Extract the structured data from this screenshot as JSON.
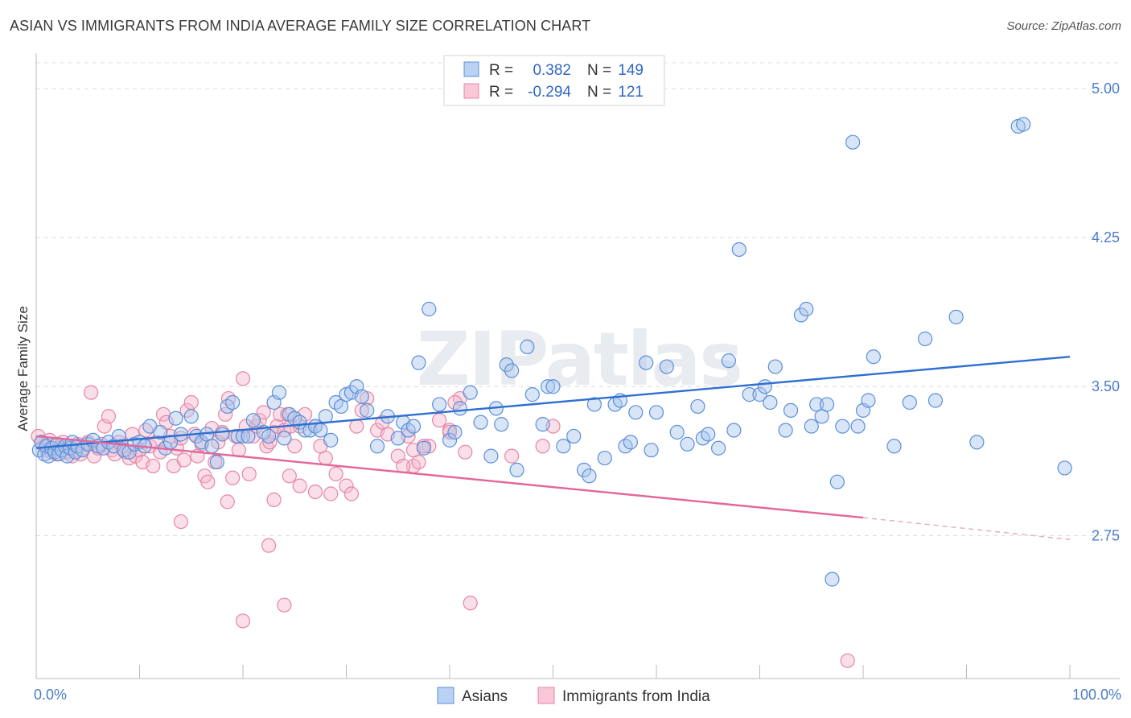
{
  "title": "ASIAN VS IMMIGRANTS FROM INDIA AVERAGE FAMILY SIZE CORRELATION CHART",
  "source": "Source: ZipAtlas.com",
  "watermark": "ZIPatlas",
  "legend": {
    "rows": [
      {
        "r_label": "R =",
        "r_value": "0.382",
        "n_label": "N =",
        "n_value": "149"
      },
      {
        "r_label": "R =",
        "r_value": "-0.294",
        "n_label": "N =",
        "n_value": "121"
      }
    ]
  },
  "colors": {
    "asian_fill": "#a9c6ee",
    "asian_stroke": "#5b8fd8",
    "asian_line": "#2f6fd0",
    "india_fill": "#f5b8cb",
    "india_stroke": "#e884a6",
    "india_line": "#e3679a",
    "grid": "#dcdcdc",
    "tick_label": "#4a7cc9"
  },
  "chart_data": {
    "type": "scatter",
    "title": "ASIAN VS IMMIGRANTS FROM INDIA AVERAGE FAMILY SIZE CORRELATION CHART",
    "xlabel": "",
    "ylabel": "Average Family Size",
    "xlim": [
      0,
      100
    ],
    "ylim": [
      2.03,
      5.13
    ],
    "x_tick_labels": [
      "0.0%",
      "100.0%"
    ],
    "y_ticks": [
      2.75,
      3.5,
      4.25,
      5.0
    ],
    "y_tick_labels": [
      "2.75",
      "3.50",
      "4.25",
      "5.00"
    ],
    "grid": true,
    "legend_position": "bottom",
    "series": [
      {
        "name": "Asians",
        "r": 0.382,
        "n": 149,
        "trend": {
          "x": [
            0,
            100
          ],
          "y": [
            3.19,
            3.65
          ]
        },
        "points": [
          [
            0.3,
            3.18
          ],
          [
            0.5,
            3.22
          ],
          [
            0.8,
            3.16
          ],
          [
            1.0,
            3.2
          ],
          [
            1.2,
            3.15
          ],
          [
            1.5,
            3.19
          ],
          [
            1.8,
            3.17
          ],
          [
            2.0,
            3.21
          ],
          [
            2.2,
            3.16
          ],
          [
            2.5,
            3.18
          ],
          [
            2.8,
            3.2
          ],
          [
            3.0,
            3.15
          ],
          [
            3.3,
            3.19
          ],
          [
            3.5,
            3.22
          ],
          [
            3.8,
            3.17
          ],
          [
            4.0,
            3.2
          ],
          [
            4.5,
            3.18
          ],
          [
            5.0,
            3.21
          ],
          [
            5.5,
            3.23
          ],
          [
            6.0,
            3.2
          ],
          [
            6.5,
            3.19
          ],
          [
            7.0,
            3.22
          ],
          [
            7.5,
            3.2
          ],
          [
            8.0,
            3.25
          ],
          [
            8.5,
            3.18
          ],
          [
            9.0,
            3.17
          ],
          [
            9.5,
            3.21
          ],
          [
            10.0,
            3.22
          ],
          [
            10.5,
            3.2
          ],
          [
            11.0,
            3.3
          ],
          [
            12.0,
            3.27
          ],
          [
            12.5,
            3.19
          ],
          [
            13.0,
            3.22
          ],
          [
            13.5,
            3.34
          ],
          [
            14.0,
            3.26
          ],
          [
            15.0,
            3.35
          ],
          [
            15.5,
            3.25
          ],
          [
            16.0,
            3.22
          ],
          [
            16.5,
            3.26
          ],
          [
            17.0,
            3.2
          ],
          [
            17.5,
            3.12
          ],
          [
            18.0,
            3.26
          ],
          [
            18.5,
            3.4
          ],
          [
            19.0,
            3.42
          ],
          [
            19.5,
            3.25
          ],
          [
            20.0,
            3.25
          ],
          [
            20.5,
            3.25
          ],
          [
            21.0,
            3.33
          ],
          [
            22.0,
            3.27
          ],
          [
            22.5,
            3.25
          ],
          [
            23.0,
            3.42
          ],
          [
            23.5,
            3.47
          ],
          [
            24.0,
            3.24
          ],
          [
            24.5,
            3.36
          ],
          [
            25.0,
            3.34
          ],
          [
            25.5,
            3.32
          ],
          [
            26.0,
            3.28
          ],
          [
            26.5,
            3.28
          ],
          [
            27.0,
            3.3
          ],
          [
            27.5,
            3.28
          ],
          [
            28.0,
            3.35
          ],
          [
            28.5,
            3.23
          ],
          [
            29.0,
            3.42
          ],
          [
            29.5,
            3.4
          ],
          [
            30.0,
            3.46
          ],
          [
            30.5,
            3.47
          ],
          [
            31.0,
            3.5
          ],
          [
            31.5,
            3.45
          ],
          [
            32.0,
            3.38
          ],
          [
            33.0,
            3.2
          ],
          [
            34.0,
            3.35
          ],
          [
            35.0,
            3.24
          ],
          [
            35.5,
            3.32
          ],
          [
            36.0,
            3.28
          ],
          [
            36.5,
            3.3
          ],
          [
            37.0,
            3.62
          ],
          [
            37.5,
            3.19
          ],
          [
            38.0,
            3.89
          ],
          [
            39.0,
            3.41
          ],
          [
            40.0,
            3.23
          ],
          [
            40.5,
            3.27
          ],
          [
            41.0,
            3.39
          ],
          [
            42.0,
            3.47
          ],
          [
            43.0,
            3.32
          ],
          [
            44.0,
            3.15
          ],
          [
            44.5,
            3.39
          ],
          [
            45.0,
            3.31
          ],
          [
            45.5,
            3.61
          ],
          [
            46.0,
            3.58
          ],
          [
            46.5,
            3.08
          ],
          [
            47.5,
            3.7
          ],
          [
            48.0,
            3.46
          ],
          [
            49.0,
            3.31
          ],
          [
            49.5,
            3.5
          ],
          [
            50.0,
            3.5
          ],
          [
            51.0,
            3.2
          ],
          [
            52.0,
            3.25
          ],
          [
            53.0,
            3.08
          ],
          [
            53.5,
            3.05
          ],
          [
            54.0,
            3.41
          ],
          [
            55.0,
            3.14
          ],
          [
            56.0,
            3.41
          ],
          [
            56.5,
            3.43
          ],
          [
            57.0,
            3.2
          ],
          [
            57.5,
            3.22
          ],
          [
            58.0,
            3.37
          ],
          [
            59.0,
            3.62
          ],
          [
            59.5,
            3.18
          ],
          [
            60.0,
            3.37
          ],
          [
            61.0,
            3.6
          ],
          [
            62.0,
            3.27
          ],
          [
            63.0,
            3.21
          ],
          [
            64.0,
            3.4
          ],
          [
            64.5,
            3.24
          ],
          [
            65.0,
            3.26
          ],
          [
            66.0,
            3.19
          ],
          [
            67.0,
            3.63
          ],
          [
            67.5,
            3.28
          ],
          [
            68.0,
            4.19
          ],
          [
            69.0,
            3.46
          ],
          [
            70.0,
            3.46
          ],
          [
            70.5,
            3.5
          ],
          [
            71.0,
            3.42
          ],
          [
            71.5,
            3.6
          ],
          [
            72.5,
            3.28
          ],
          [
            73.0,
            3.38
          ],
          [
            74.0,
            3.86
          ],
          [
            74.5,
            3.89
          ],
          [
            75.5,
            3.41
          ],
          [
            76.0,
            3.35
          ],
          [
            76.5,
            3.41
          ],
          [
            77.5,
            3.02
          ],
          [
            78.0,
            3.3
          ],
          [
            79.0,
            4.73
          ],
          [
            79.5,
            3.3
          ],
          [
            80.0,
            3.38
          ],
          [
            80.5,
            3.43
          ],
          [
            81.0,
            3.65
          ],
          [
            83.0,
            3.2
          ],
          [
            84.5,
            3.42
          ],
          [
            86.0,
            3.74
          ],
          [
            87.0,
            3.43
          ],
          [
            89.0,
            3.85
          ],
          [
            91.0,
            3.22
          ],
          [
            95.0,
            4.81
          ],
          [
            95.5,
            4.82
          ],
          [
            99.5,
            3.09
          ],
          [
            77.0,
            2.53
          ],
          [
            75.0,
            3.3
          ]
        ]
      },
      {
        "name": "Immigrants from India",
        "r": -0.294,
        "n": 121,
        "trend": {
          "x": [
            0,
            80
          ],
          "y": [
            3.25,
            2.84
          ]
        },
        "trend_dashed": {
          "x": [
            80,
            100
          ],
          "y": [
            2.84,
            2.73
          ]
        },
        "points": [
          [
            0.2,
            3.25
          ],
          [
            0.5,
            3.22
          ],
          [
            0.8,
            3.2
          ],
          [
            1.0,
            3.18
          ],
          [
            1.3,
            3.23
          ],
          [
            1.5,
            3.17
          ],
          [
            1.8,
            3.2
          ],
          [
            2.0,
            3.16
          ],
          [
            2.3,
            3.19
          ],
          [
            2.6,
            3.22
          ],
          [
            2.9,
            3.17
          ],
          [
            3.2,
            3.2
          ],
          [
            3.5,
            3.15
          ],
          [
            3.8,
            3.18
          ],
          [
            4.0,
            3.21
          ],
          [
            4.3,
            3.16
          ],
          [
            4.6,
            3.19
          ],
          [
            5.0,
            3.22
          ],
          [
            5.3,
            3.47
          ],
          [
            5.6,
            3.15
          ],
          [
            6.0,
            3.19
          ],
          [
            6.3,
            3.21
          ],
          [
            6.6,
            3.3
          ],
          [
            7.0,
            3.35
          ],
          [
            7.3,
            3.18
          ],
          [
            7.6,
            3.16
          ],
          [
            8.0,
            3.22
          ],
          [
            8.3,
            3.2
          ],
          [
            8.6,
            3.17
          ],
          [
            9.0,
            3.14
          ],
          [
            9.3,
            3.26
          ],
          [
            9.6,
            3.15
          ],
          [
            10.0,
            3.18
          ],
          [
            10.3,
            3.12
          ],
          [
            10.6,
            3.28
          ],
          [
            11.0,
            3.2
          ],
          [
            11.3,
            3.1
          ],
          [
            11.6,
            3.22
          ],
          [
            12.0,
            3.17
          ],
          [
            12.3,
            3.36
          ],
          [
            12.6,
            3.32
          ],
          [
            13.0,
            3.25
          ],
          [
            13.3,
            3.1
          ],
          [
            13.6,
            3.19
          ],
          [
            14.0,
            3.24
          ],
          [
            14.3,
            3.13
          ],
          [
            14.6,
            3.38
          ],
          [
            15.0,
            3.42
          ],
          [
            15.3,
            3.26
          ],
          [
            15.6,
            3.15
          ],
          [
            16.0,
            3.21
          ],
          [
            16.3,
            3.05
          ],
          [
            16.6,
            3.02
          ],
          [
            17.0,
            3.29
          ],
          [
            17.3,
            3.12
          ],
          [
            17.6,
            3.22
          ],
          [
            18.0,
            3.27
          ],
          [
            18.3,
            3.36
          ],
          [
            18.6,
            3.44
          ],
          [
            19.0,
            3.04
          ],
          [
            19.3,
            3.25
          ],
          [
            19.6,
            3.18
          ],
          [
            20.0,
            3.54
          ],
          [
            20.3,
            3.3
          ],
          [
            20.6,
            3.06
          ],
          [
            21.0,
            3.25
          ],
          [
            21.3,
            3.3
          ],
          [
            21.6,
            3.33
          ],
          [
            22.0,
            3.37
          ],
          [
            22.3,
            3.2
          ],
          [
            22.6,
            3.22
          ],
          [
            23.0,
            3.27
          ],
          [
            23.3,
            3.3
          ],
          [
            23.6,
            3.36
          ],
          [
            24.0,
            3.28
          ],
          [
            24.3,
            3.36
          ],
          [
            24.6,
            3.3
          ],
          [
            25.0,
            3.2
          ],
          [
            25.5,
            3.3
          ],
          [
            26.0,
            3.36
          ],
          [
            27.0,
            3.3
          ],
          [
            28.0,
            3.14
          ],
          [
            29.0,
            3.06
          ],
          [
            30.0,
            3.0
          ],
          [
            31.0,
            3.3
          ],
          [
            32.0,
            3.44
          ],
          [
            33.0,
            3.28
          ],
          [
            34.0,
            3.26
          ],
          [
            35.0,
            3.15
          ],
          [
            36.0,
            3.25
          ],
          [
            36.5,
            3.1
          ],
          [
            37.0,
            3.12
          ],
          [
            38.0,
            3.2
          ],
          [
            39.0,
            3.33
          ],
          [
            40.0,
            3.28
          ],
          [
            41.0,
            3.44
          ],
          [
            14.0,
            2.82
          ],
          [
            18.5,
            2.92
          ],
          [
            22.5,
            2.7
          ],
          [
            20.0,
            2.32
          ],
          [
            23.0,
            2.93
          ],
          [
            24.5,
            3.05
          ],
          [
            25.5,
            3.0
          ],
          [
            27.0,
            2.97
          ],
          [
            28.5,
            2.96
          ],
          [
            30.5,
            2.96
          ],
          [
            31.5,
            3.38
          ],
          [
            36.5,
            3.18
          ],
          [
            37.5,
            3.2
          ],
          [
            40.5,
            3.42
          ],
          [
            40.0,
            3.27
          ],
          [
            46.0,
            3.15
          ],
          [
            49.0,
            3.2
          ],
          [
            50.0,
            3.3
          ],
          [
            41.5,
            3.17
          ],
          [
            35.5,
            3.1
          ],
          [
            33.5,
            3.32
          ],
          [
            27.5,
            3.2
          ],
          [
            24.0,
            2.4
          ],
          [
            42.0,
            2.41
          ],
          [
            78.5,
            2.12
          ]
        ]
      }
    ]
  },
  "bottom_legend": [
    {
      "label": "Asians"
    },
    {
      "label": "Immigrants from India"
    }
  ]
}
